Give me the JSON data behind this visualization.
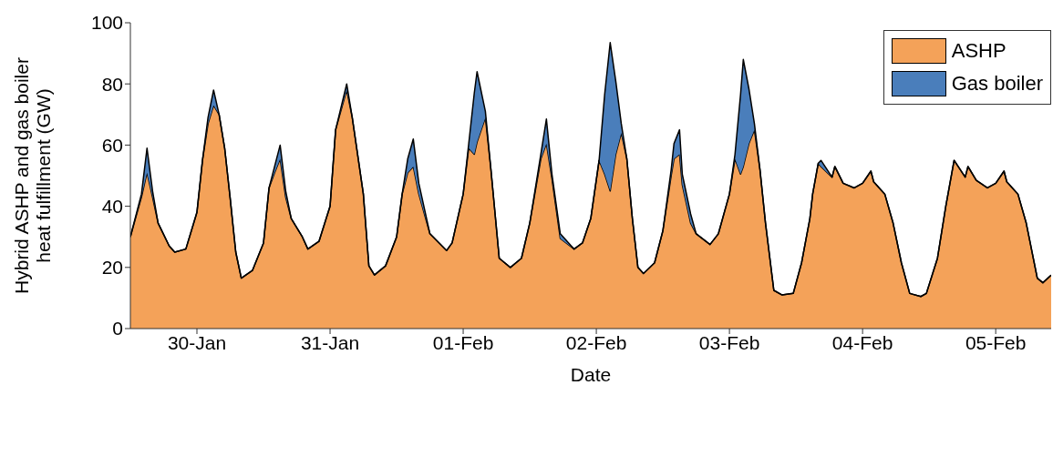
{
  "chart_data": {
    "type": "area",
    "stacked": true,
    "xlabel": "Date",
    "ylabel": "Hybrid ASHP and gas boiler heat fulfillment (GW)",
    "x": [
      "--01-29T12:00",
      "--01-29T14:00",
      "--01-29T15:00",
      "--01-29T16:00",
      "--01-29T17:00",
      "--01-29T19:00",
      "--01-29T20:00",
      "--01-29T22:00",
      "--01-30T00:00",
      "--01-30T01:00",
      "--01-30T02:00",
      "--01-30T03:00",
      "--01-30T04:00",
      "--01-30T05:00",
      "--01-30T06:00",
      "--01-30T07:00",
      "--01-30T08:00",
      "--01-30T10:00",
      "--01-30T12:00",
      "--01-30T13:00",
      "--01-30T14:00",
      "--01-30T15:00",
      "--01-30T16:00",
      "--01-30T17:00",
      "--01-30T19:00",
      "--01-30T20:00",
      "--01-30T22:00",
      "--01-31T00:00",
      "--01-31T01:00",
      "--01-31T03:00",
      "--01-31T04:00",
      "--01-31T06:00",
      "--01-31T07:00",
      "--01-31T08:00",
      "--01-31T10:00",
      "--01-31T12:00",
      "--01-31T13:00",
      "--01-31T14:00",
      "--01-31T15:00",
      "--01-31T16:00",
      "--01-31T18:00",
      "--01-31T21:00",
      "--01-31T22:00",
      "--02-01T00:00",
      "--02-01T01:00",
      "--02-01T02:00",
      "--02-01T02:30",
      "--02-01T04:00",
      "--02-01T05:00",
      "--02-01T06:30",
      "--02-01T08:30",
      "--02-01T10:30",
      "--02-01T12:00",
      "--02-01T14:00",
      "--02-01T15:00",
      "--02-01T16:00",
      "--02-01T17:30",
      "--02-01T20:00",
      "--02-01T21:30",
      "--02-01T23:00",
      "--02-02T00:30",
      "--02-02T01:30",
      "--02-02T02:30",
      "--02-02T03:30",
      "--02-02T04:30",
      "--02-02T05:30",
      "--02-02T06:30",
      "--02-02T07:30",
      "--02-02T08:30",
      "--02-02T10:30",
      "--02-02T12:00",
      "--02-02T13:30",
      "--02-02T14:00",
      "--02-02T15:00",
      "--02-02T15:30",
      "--02-02T17:00",
      "--02-02T18:00",
      "--02-02T20:30",
      "--02-02T22:00",
      "--02-03T00:00",
      "--02-03T01:00",
      "--02-03T02:00",
      "--02-03T02:30",
      "--02-03T03:30",
      "--02-03T04:30",
      "--02-03T05:30",
      "--02-03T06:30",
      "--02-03T08:00",
      "--02-03T09:30",
      "--02-03T11:30",
      "--02-03T13:00",
      "--02-03T14:30",
      "--02-03T15:00",
      "--02-03T16:00",
      "--02-03T16:30",
      "--02-03T18:30",
      "--02-03T19:00",
      "--02-03T20:30",
      "--02-03T22:30",
      "--02-04T00:00",
      "--02-04T01:30",
      "--02-04T02:00",
      "--02-04T04:00",
      "--02-04T05:30",
      "--02-04T07:00",
      "--02-04T08:30",
      "--02-04T10:30",
      "--02-04T11:30",
      "--02-04T13:30",
      "--02-04T15:00",
      "--02-04T16:30",
      "--02-04T18:30",
      "--02-04T19:00",
      "--02-04T20:30",
      "--02-04T22:30",
      "--02-05T00:00",
      "--02-05T01:30",
      "--02-05T02:00",
      "--02-05T04:00",
      "--02-05T05:30",
      "--02-05T07:30",
      "--02-05T08:30",
      "--02-05T10:00"
    ],
    "series": [
      {
        "name": "ASHP",
        "color": "#f4a259",
        "values": [
          30,
          43,
          51,
          43,
          34.5,
          27,
          25,
          26,
          38,
          55,
          67,
          73,
          70,
          59,
          42.5,
          25,
          16.5,
          19,
          28,
          46,
          51,
          55.5,
          43,
          36,
          30,
          26,
          28.5,
          40,
          65,
          78,
          69,
          44,
          20.5,
          17.5,
          20.5,
          30,
          44,
          51,
          53,
          44,
          31,
          25.5,
          28,
          44,
          59,
          57,
          61,
          69,
          52,
          23,
          20,
          23,
          34.5,
          55.5,
          60.5,
          49,
          29.5,
          26,
          28,
          36,
          55,
          50.5,
          45,
          57,
          64,
          55.5,
          36,
          20,
          18,
          21.5,
          32,
          50,
          55.5,
          57,
          47,
          34.5,
          31,
          27.5,
          31,
          44,
          55.5,
          50.5,
          53,
          60.5,
          65,
          52,
          34.5,
          12.5,
          11,
          11.5,
          21.5,
          36,
          44,
          54,
          53,
          49.5,
          53,
          47.5,
          46,
          47.5,
          51.5,
          48,
          44,
          34.5,
          21.5,
          11.5,
          10.5,
          11.5,
          23,
          40,
          55,
          49.5,
          53,
          48.5,
          46,
          47.5,
          51.5,
          48,
          44,
          34.5,
          16.5,
          15,
          17.5
        ]
      },
      {
        "name": "Gas boiler",
        "color": "#4a7ebb",
        "values": [
          0,
          1,
          8,
          2,
          0,
          0,
          0,
          0,
          0,
          0,
          2,
          5,
          0,
          0,
          0,
          0,
          0,
          0,
          0,
          0,
          2,
          4.5,
          2,
          0,
          0,
          0,
          0,
          0,
          0,
          2,
          0,
          0,
          0,
          0,
          0,
          0,
          0,
          4.5,
          9,
          3.5,
          0,
          0,
          0,
          0,
          1.5,
          20,
          23,
          2,
          0,
          0,
          0,
          0,
          0,
          1.5,
          8,
          1.5,
          1.5,
          0,
          0,
          0,
          0,
          26,
          48.5,
          24,
          3,
          0,
          0,
          0,
          0,
          0,
          0,
          2,
          5,
          8,
          3.5,
          3,
          0,
          0,
          0,
          0,
          1.5,
          26,
          35,
          18,
          2,
          0,
          0,
          0,
          0,
          0,
          0,
          0,
          0,
          0,
          2,
          0,
          0,
          0,
          0,
          0,
          0,
          0,
          0,
          0,
          0,
          0,
          0,
          0,
          0,
          0,
          0,
          0,
          0,
          0,
          0,
          0,
          0,
          0,
          0,
          0,
          0,
          0,
          0
        ]
      }
    ],
    "xlim": [
      "--01-29T12:00",
      "--02-05T10:00"
    ],
    "xticks": [
      {
        "value": "--01-30",
        "label": "30-Jan"
      },
      {
        "value": "--01-31",
        "label": "31-Jan"
      },
      {
        "value": "--02-01",
        "label": "01-Feb"
      },
      {
        "value": "--02-02",
        "label": "02-Feb"
      },
      {
        "value": "--02-03",
        "label": "03-Feb"
      },
      {
        "value": "--02-04",
        "label": "04-Feb"
      },
      {
        "value": "--02-05",
        "label": "05-Feb"
      }
    ],
    "ylim": [
      0,
      100
    ],
    "yticks": [
      0,
      20,
      40,
      60,
      80,
      100
    ],
    "legend": "top right"
  }
}
